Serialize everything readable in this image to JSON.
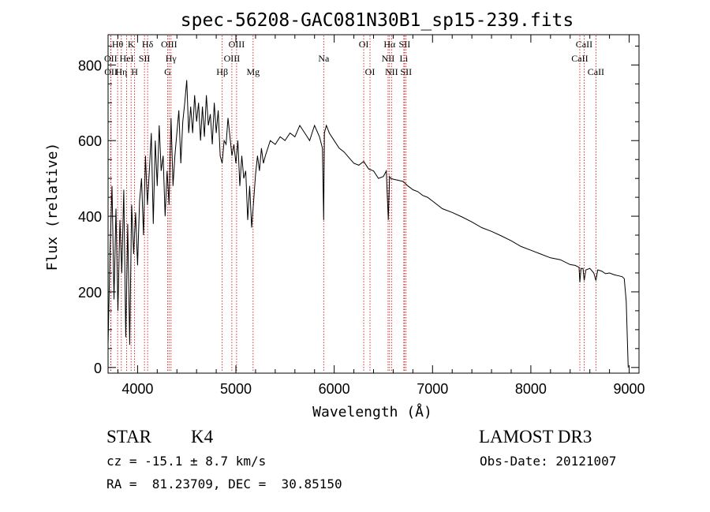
{
  "chart_data": {
    "type": "line",
    "title": "spec-56208-GAC081N30B1_sp15-239.fits",
    "xlabel": "Wavelength (Å)",
    "ylabel": "Flux (relative)",
    "xlim": [
      3700,
      9100
    ],
    "ylim": [
      -15,
      880
    ],
    "xticks": [
      4000,
      5000,
      6000,
      7000,
      8000,
      9000
    ],
    "xtick_labels": [
      "4000",
      "5000",
      "6000",
      "7000",
      "8000",
      "9000"
    ],
    "yticks": [
      0,
      200,
      400,
      600,
      800
    ],
    "ytick_labels": [
      "0",
      "200",
      "400",
      "600",
      "800"
    ],
    "grid": false,
    "line_color": "#000000",
    "marker_color": "#cc0000",
    "spectral_lines": [
      {
        "label": "Hθ",
        "x": 3797,
        "row": 0
      },
      {
        "label": "OII",
        "x": 3727,
        "row": 1
      },
      {
        "label": "OII",
        "x": 3729,
        "row": 2
      },
      {
        "label": "Hη",
        "x": 3835,
        "row": 2
      },
      {
        "label": "HeI",
        "x": 3889,
        "row": 1
      },
      {
        "label": "K",
        "x": 3934,
        "row": 0
      },
      {
        "label": "H",
        "x": 3969,
        "row": 2
      },
      {
        "label": "SII",
        "x": 4070,
        "row": 1
      },
      {
        "label": "Hδ",
        "x": 4102,
        "row": 0
      },
      {
        "label": "OIII",
        "x": 4320,
        "row": 0
      },
      {
        "label": "Hγ",
        "x": 4340,
        "row": 1
      },
      {
        "label": "G",
        "x": 4305,
        "row": 2
      },
      {
        "label": "Hβ",
        "x": 4861,
        "row": 2
      },
      {
        "label": "OIII",
        "x": 5007,
        "row": 0
      },
      {
        "label": "OIII",
        "x": 4959,
        "row": 1
      },
      {
        "label": "Mg",
        "x": 5175,
        "row": 2
      },
      {
        "label": "Na",
        "x": 5893,
        "row": 1
      },
      {
        "label": "OI",
        "x": 6300,
        "row": 0
      },
      {
        "label": "OI",
        "x": 6364,
        "row": 2
      },
      {
        "label": "Hα",
        "x": 6563,
        "row": 0
      },
      {
        "label": "NII",
        "x": 6548,
        "row": 1
      },
      {
        "label": "NII",
        "x": 6583,
        "row": 2
      },
      {
        "label": "SII",
        "x": 6716,
        "row": 0
      },
      {
        "label": "Li",
        "x": 6708,
        "row": 1
      },
      {
        "label": "SII",
        "x": 6731,
        "row": 2
      },
      {
        "label": "CaII",
        "x": 8542,
        "row": 0
      },
      {
        "label": "CaII",
        "x": 8498,
        "row": 1
      },
      {
        "label": "CaII",
        "x": 8662,
        "row": 2
      }
    ],
    "spectrum": {
      "x": [
        3700,
        3720,
        3740,
        3760,
        3780,
        3800,
        3820,
        3840,
        3860,
        3880,
        3900,
        3920,
        3940,
        3960,
        3980,
        4000,
        4020,
        4040,
        4060,
        4080,
        4100,
        4120,
        4140,
        4160,
        4180,
        4200,
        4220,
        4240,
        4260,
        4280,
        4300,
        4320,
        4340,
        4360,
        4380,
        4400,
        4420,
        4440,
        4460,
        4480,
        4500,
        4520,
        4540,
        4560,
        4580,
        4600,
        4620,
        4640,
        4660,
        4680,
        4700,
        4720,
        4740,
        4760,
        4780,
        4800,
        4820,
        4840,
        4860,
        4880,
        4900,
        4920,
        4940,
        4960,
        4980,
        5000,
        5020,
        5040,
        5060,
        5080,
        5100,
        5120,
        5140,
        5160,
        5180,
        5200,
        5220,
        5240,
        5260,
        5280,
        5300,
        5350,
        5400,
        5450,
        5500,
        5550,
        5600,
        5650,
        5700,
        5750,
        5800,
        5850,
        5880,
        5893,
        5900,
        5920,
        5950,
        6000,
        6050,
        6100,
        6150,
        6200,
        6250,
        6300,
        6350,
        6400,
        6450,
        6500,
        6530,
        6550,
        6563,
        6575,
        6600,
        6650,
        6700,
        6750,
        6800,
        6850,
        6900,
        6950,
        7000,
        7100,
        7200,
        7300,
        7400,
        7500,
        7600,
        7700,
        7800,
        7900,
        8000,
        8100,
        8200,
        8300,
        8400,
        8450,
        8490,
        8498,
        8510,
        8530,
        8542,
        8560,
        8600,
        8640,
        8662,
        8680,
        8720,
        8760,
        8800,
        8850,
        8900,
        8930,
        8950,
        8970,
        8990,
        9000
      ],
      "flux": [
        60,
        310,
        480,
        180,
        420,
        150,
        390,
        250,
        470,
        80,
        380,
        60,
        430,
        300,
        410,
        270,
        440,
        500,
        350,
        560,
        430,
        520,
        620,
        380,
        600,
        480,
        640,
        520,
        560,
        400,
        520,
        430,
        660,
        480,
        560,
        620,
        680,
        540,
        650,
        700,
        760,
        620,
        690,
        620,
        720,
        650,
        700,
        600,
        690,
        610,
        720,
        640,
        670,
        590,
        700,
        620,
        680,
        560,
        540,
        600,
        590,
        660,
        610,
        560,
        590,
        540,
        600,
        480,
        560,
        500,
        520,
        390,
        480,
        370,
        440,
        510,
        560,
        520,
        580,
        540,
        560,
        600,
        590,
        610,
        600,
        620,
        610,
        640,
        620,
        600,
        640,
        610,
        580,
        390,
        620,
        640,
        620,
        600,
        580,
        570,
        555,
        540,
        535,
        545,
        525,
        520,
        500,
        505,
        520,
        390,
        505,
        500,
        498,
        495,
        492,
        480,
        470,
        465,
        455,
        450,
        440,
        420,
        410,
        398,
        385,
        370,
        360,
        348,
        335,
        320,
        310,
        300,
        290,
        285,
        272,
        270,
        265,
        225,
        262,
        262,
        230,
        258,
        262,
        250,
        230,
        258,
        255,
        248,
        250,
        245,
        242,
        240,
        235,
        175,
        0
      ]
    }
  },
  "info": {
    "object_class": "STAR",
    "subclass": "K4",
    "survey": "LAMOST DR3",
    "redshift": "cz = -15.1 ± 8.7 km/s",
    "obs_date": "Obs-Date: 20121007",
    "coords": "RA =  81.23709, DEC =  30.85150"
  }
}
